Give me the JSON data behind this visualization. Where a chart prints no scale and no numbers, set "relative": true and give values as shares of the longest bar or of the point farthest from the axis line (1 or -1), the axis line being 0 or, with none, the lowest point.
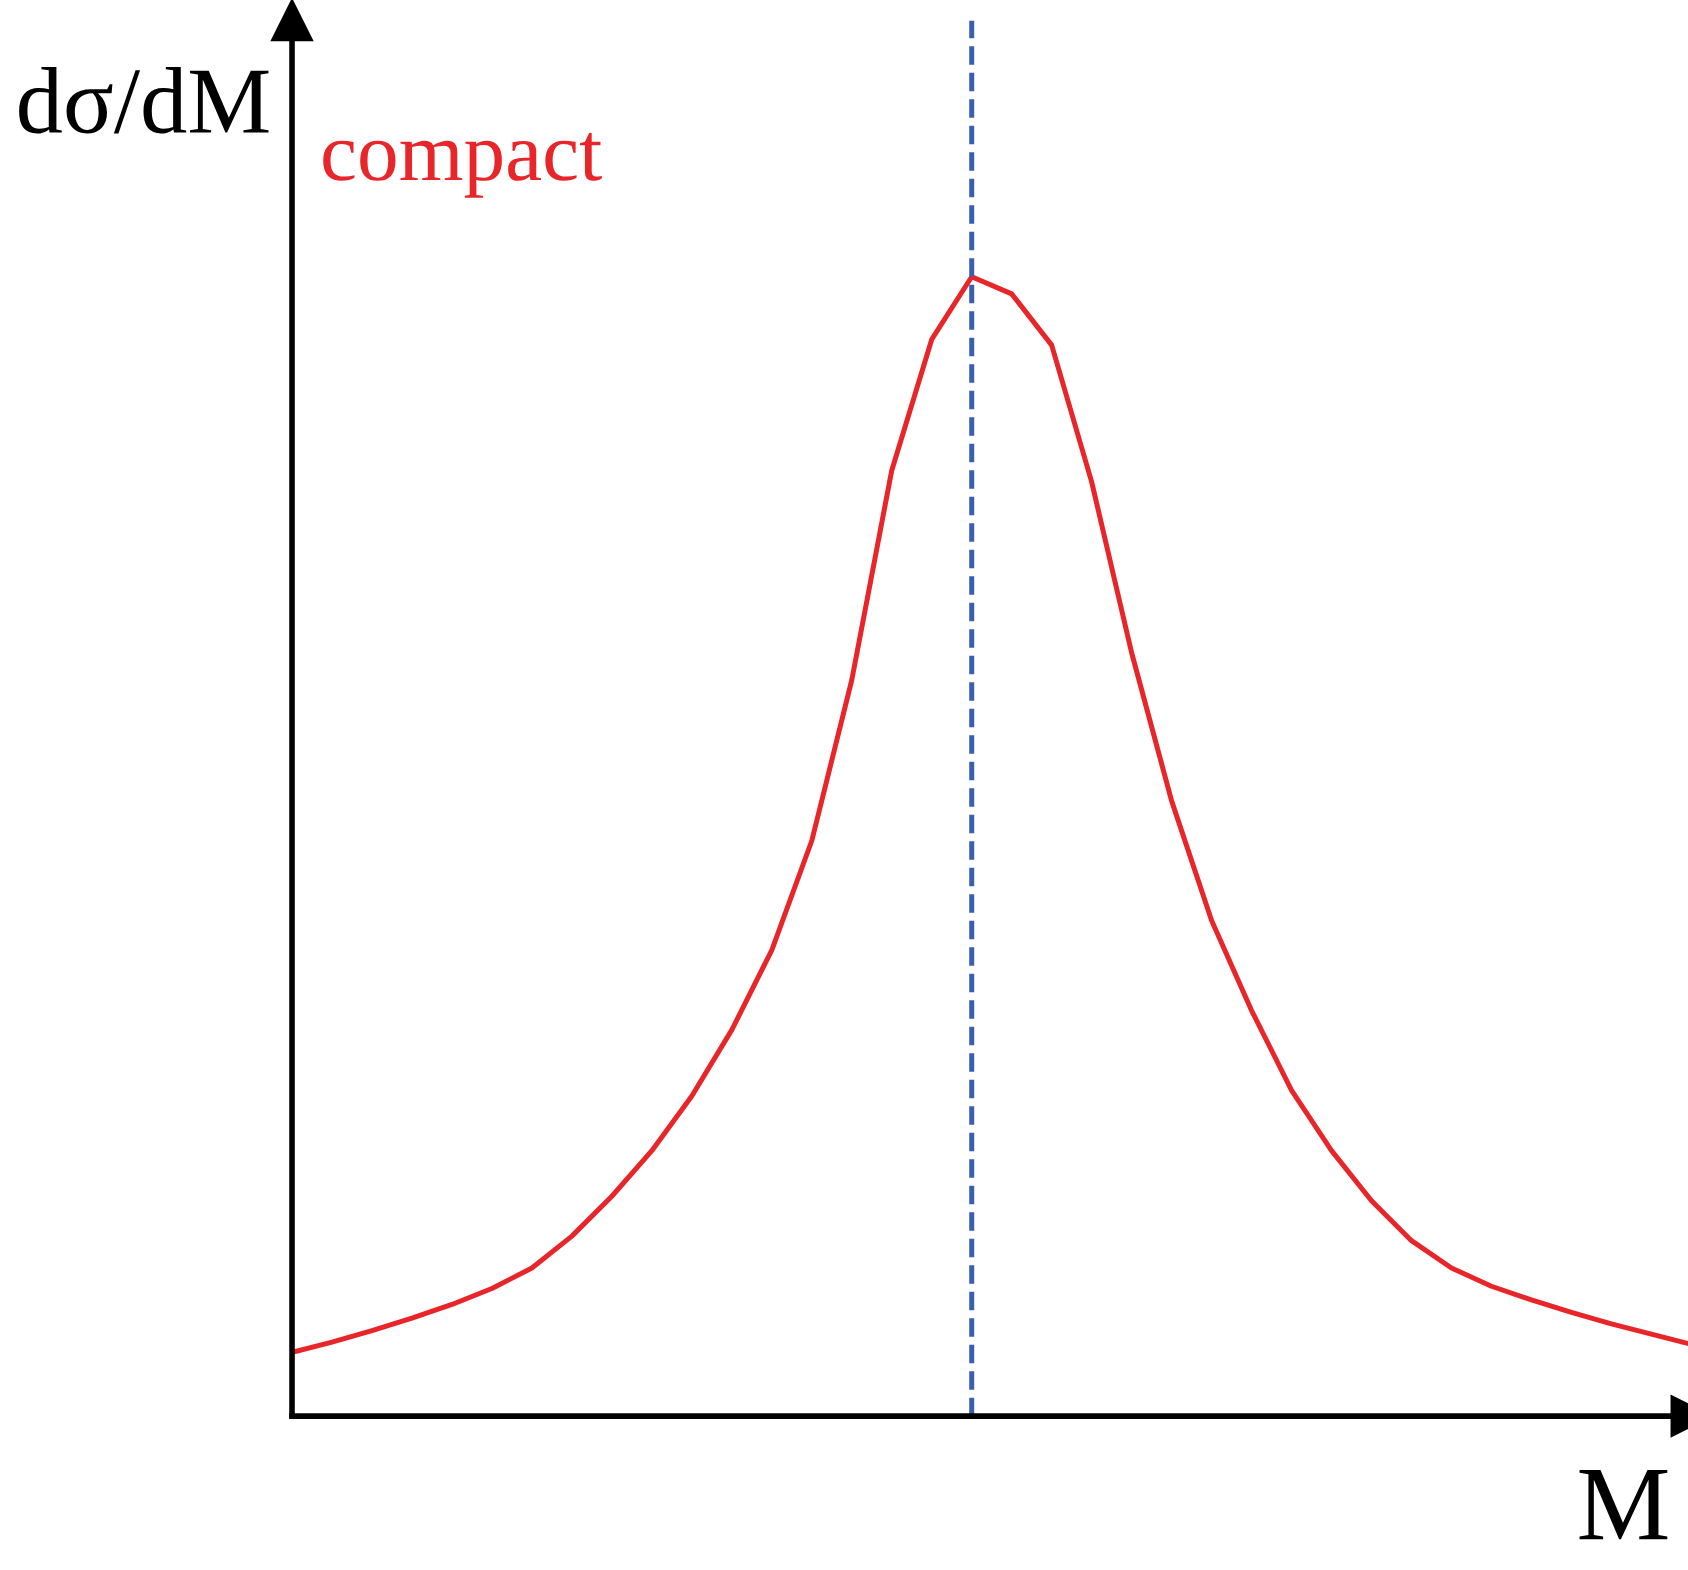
{
  "chart_data": {
    "type": "line",
    "relative": true,
    "xlabel": "M",
    "ylabel": "dσ/dM",
    "categories": [
      null,
      null,
      null,
      null,
      null,
      null,
      null,
      null,
      null,
      null,
      null,
      null,
      null,
      null,
      null,
      null,
      null,
      null,
      null,
      null,
      null,
      null,
      null,
      null,
      null,
      null,
      null,
      null,
      null,
      null,
      null,
      null,
      null,
      null,
      null,
      null
    ],
    "series": [
      {
        "name": "compact",
        "color": "#e8262a",
        "values": [
          0.056,
          0.065,
          0.075,
          0.086,
          0.098,
          0.112,
          0.13,
          0.158,
          0.193,
          0.233,
          0.281,
          0.339,
          0.409,
          0.505,
          0.646,
          0.83,
          0.945,
          1.0,
          0.985,
          0.94,
          0.82,
          0.67,
          0.54,
          0.435,
          0.356,
          0.286,
          0.233,
          0.189,
          0.154,
          0.13,
          0.114,
          0.102,
          0.091,
          0.081,
          0.072,
          0.063
        ]
      }
    ],
    "line_style": "solid"
  }
}
